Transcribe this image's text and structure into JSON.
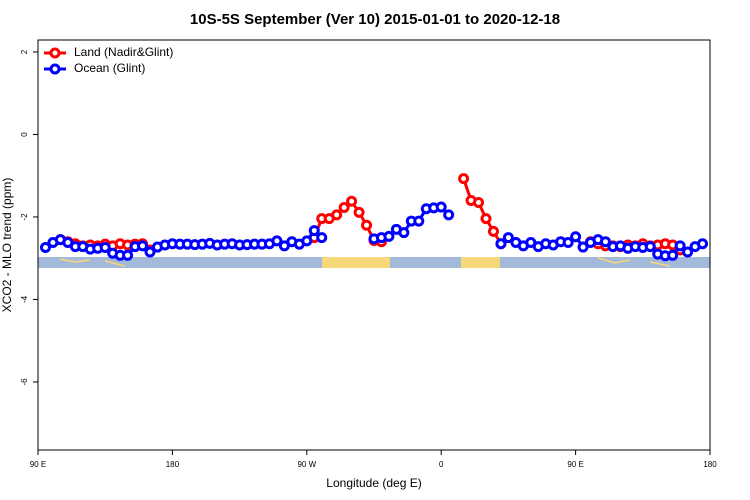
{
  "chart_data": {
    "type": "line",
    "title": "10S-5S September (Ver 10)   2015-01-01 to 2020-12-18",
    "x_label": "Longitude (deg E)",
    "y_label": "XCO2 - MLO trend (ppm)",
    "x": [
      -265,
      -260,
      -255,
      -250,
      -245,
      -240,
      -235,
      -230,
      -225,
      -220,
      -215,
      -210,
      -205,
      -200,
      -195,
      -190,
      -185,
      -180,
      -175,
      -170,
      -165,
      -160,
      -155,
      -150,
      -145,
      -140,
      -135,
      -130,
      -125,
      -120,
      -115,
      -110,
      -105,
      -100,
      -95,
      -90,
      -85,
      -80,
      -75,
      -70,
      -65,
      -60,
      -55,
      -50,
      -45,
      -40,
      -35,
      -30,
      -25,
      -20,
      -15,
      -10,
      -5,
      0,
      5,
      10,
      15,
      20,
      25,
      30,
      35,
      40,
      45,
      50,
      55,
      60,
      65,
      70,
      75,
      80,
      85,
      90,
      95,
      100,
      105,
      110,
      115,
      120,
      125,
      130,
      135,
      140,
      145,
      150,
      155,
      160,
      165,
      170,
      175
    ],
    "series": [
      {
        "name": "Land (Nadir&Glint)",
        "color": "#ff0000",
        "values": [
          null,
          null,
          -2.55,
          -2.6,
          -2.65,
          -2.7,
          -2.68,
          -2.7,
          -2.66,
          -2.7,
          -2.65,
          -2.68,
          -2.66,
          -2.65,
          -2.8,
          null,
          null,
          null,
          null,
          null,
          null,
          null,
          null,
          null,
          null,
          null,
          null,
          null,
          null,
          null,
          null,
          null,
          null,
          null,
          null,
          null,
          -2.5,
          -2.04,
          -2.04,
          -1.95,
          -1.77,
          -1.62,
          -1.89,
          -2.2,
          -2.57,
          -2.6,
          null,
          null,
          null,
          null,
          null,
          null,
          null,
          null,
          null,
          null,
          -1.07,
          -1.6,
          -1.65,
          -2.04,
          -2.35,
          -2.65,
          null,
          null,
          null,
          null,
          null,
          null,
          null,
          null,
          null,
          null,
          null,
          -2.6,
          -2.65,
          -2.7,
          -2.7,
          -2.72,
          -2.68,
          -2.7,
          -2.65,
          -2.7,
          -2.68,
          -2.65,
          -2.68,
          -2.8,
          null,
          null,
          null
        ]
      },
      {
        "name": "Ocean (Glint)",
        "color": "#0000ff",
        "values": [
          -2.74,
          -2.62,
          -2.55,
          -2.62,
          -2.72,
          -2.72,
          -2.78,
          -2.76,
          -2.74,
          -2.88,
          -2.93,
          -2.93,
          -2.72,
          -2.7,
          -2.85,
          -2.73,
          -2.68,
          -2.65,
          -2.66,
          -2.66,
          -2.67,
          -2.66,
          -2.64,
          -2.68,
          -2.66,
          -2.65,
          -2.68,
          -2.67,
          -2.66,
          -2.66,
          -2.65,
          -2.58,
          -2.7,
          -2.6,
          -2.66,
          -2.58,
          -2.33,
          -2.5,
          null,
          null,
          null,
          null,
          null,
          null,
          -2.53,
          -2.5,
          -2.47,
          -2.3,
          -2.38,
          -2.1,
          -2.1,
          -1.8,
          -1.78,
          -1.76,
          -1.95,
          null,
          null,
          null,
          null,
          null,
          null,
          -2.65,
          -2.5,
          -2.62,
          -2.7,
          -2.62,
          -2.72,
          -2.65,
          -2.68,
          -2.6,
          -2.62,
          -2.48,
          -2.73,
          -2.62,
          -2.55,
          -2.6,
          -2.72,
          -2.7,
          -2.76,
          -2.72,
          -2.74,
          -2.72,
          -2.9,
          -2.94,
          -2.93,
          -2.7,
          -2.85,
          -2.72,
          -2.65
        ]
      }
    ],
    "xlim": [
      -270,
      180
    ],
    "xticks": [
      {
        "value": -270,
        "label": "90 E"
      },
      {
        "value": -180,
        "label": "180"
      },
      {
        "value": -90,
        "label": "90 W"
      },
      0,
      {
        "value": 90,
        "label": "90 E"
      },
      180
    ],
    "ylim": [
      -7.65,
      2.29
    ],
    "yticks": [
      2,
      0,
      -2,
      -4,
      -6
    ],
    "legend": "top-left"
  }
}
